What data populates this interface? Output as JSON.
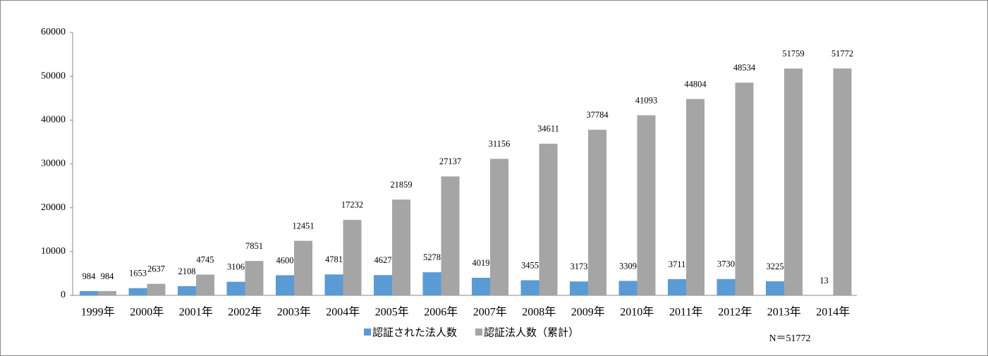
{
  "chart_data": {
    "type": "bar",
    "categories": [
      "1999年",
      "2000年",
      "2001年",
      "2002年",
      "2003年",
      "2004年",
      "2005年",
      "2006年",
      "2007年",
      "2008年",
      "2009年",
      "2010年",
      "2011年",
      "2012年",
      "2013年",
      "2014年"
    ],
    "series": [
      {
        "name": "認証された法人数",
        "color": "#5b9bd5",
        "values": [
          984,
          1653,
          2108,
          3106,
          4600,
          4781,
          4627,
          5278,
          4019,
          3455,
          3173,
          3309,
          3711,
          3730,
          3225,
          13
        ]
      },
      {
        "name": "認証法人数（累計）",
        "color": "#a5a5a5",
        "values": [
          984,
          2637,
          4745,
          7851,
          12451,
          17232,
          21859,
          27137,
          31156,
          34611,
          37784,
          41093,
          44804,
          48534,
          51759,
          51772
        ]
      }
    ],
    "ylim": [
      0,
      60000
    ],
    "yticks": [
      0,
      10000,
      20000,
      30000,
      40000,
      50000,
      60000
    ],
    "grid": false,
    "legend": "bottom",
    "annotation": "N＝51772"
  }
}
